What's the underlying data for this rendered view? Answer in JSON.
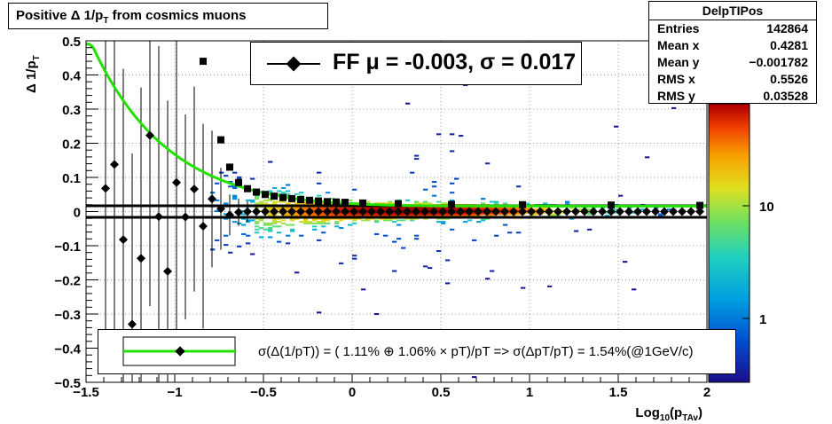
{
  "title": "Positive Δ 1/p_T from cosmics muons",
  "stats": {
    "name": "DelpTIPos",
    "rows": [
      {
        "label": "Entries",
        "value": "142864"
      },
      {
        "label": "Mean x",
        "value": "0.4281"
      },
      {
        "label": "Mean y",
        "value": "−0.001782"
      },
      {
        "label": "RMS x",
        "value": "0.5526"
      },
      {
        "label": "RMS y",
        "value": "0.03528"
      }
    ]
  },
  "fit_legend": "FF μ = -0.003, σ =   0.017",
  "resolution_legend": "σ(Δ(1/pT)) = ( 1.11% ⊕  1.06% × pT)/pT => σ(ΔpT/pT) =  1.54%(@1GeV/c)",
  "colors": {
    "fit_curve": "#22e000",
    "markers": "#000000",
    "frame": "#000000"
  },
  "chart_data": {
    "type": "heatmap",
    "xlabel": "Log10(pTAv)",
    "ylabel": "Δ 1/pT",
    "xlim": [
      -1.5,
      2
    ],
    "ylim": [
      -0.5,
      0.5
    ],
    "x_ticks": [
      "−1.5",
      "−1",
      "−0.5",
      "0",
      "0.5",
      "1",
      "1.5",
      "2"
    ],
    "y_ticks": [
      "0.5",
      "0.4",
      "0.3",
      "0.2",
      "0.1",
      "0",
      "−0.1",
      "−0.2",
      "−0.3",
      "−0.4",
      "−0.5"
    ],
    "grid": true,
    "z_scale": "log",
    "z_ticks": [
      "10",
      "1"
    ],
    "band_center_y": 0.0,
    "means": [
      {
        "x": -1.39,
        "y": 0.068,
        "err": 0.5
      },
      {
        "x": -1.34,
        "y": 0.138,
        "err": 0.5
      },
      {
        "x": -1.29,
        "y": -0.082,
        "err": 0.5
      },
      {
        "x": -1.24,
        "y": -0.33,
        "err": 0.5
      },
      {
        "x": -1.19,
        "y": -0.137,
        "err": 0.5
      },
      {
        "x": -1.14,
        "y": 0.223,
        "err": 0.5
      },
      {
        "x": -1.09,
        "y": -0.015,
        "err": 0.5
      },
      {
        "x": -1.04,
        "y": -0.175,
        "err": 0.5
      },
      {
        "x": -0.99,
        "y": 0.085,
        "err": 0.5
      },
      {
        "x": -0.94,
        "y": -0.016,
        "err": 0.3
      },
      {
        "x": -0.89,
        "y": 0.066,
        "err": 0.3
      },
      {
        "x": -0.84,
        "y": -0.043,
        "err": 0.3
      },
      {
        "x": -0.79,
        "y": 0.037,
        "err": 0.2
      },
      {
        "x": -0.74,
        "y": 0.008,
        "err": 0.12
      },
      {
        "x": -0.69,
        "y": -0.01,
        "err": 0.06
      },
      {
        "x": -0.64,
        "y": -0.002,
        "err": 0.04
      },
      {
        "x": -0.59,
        "y": 0.0,
        "err": 0.03
      },
      {
        "x": -0.54,
        "y": 0.0,
        "err": 0.02
      },
      {
        "x": -0.49,
        "y": 0.0,
        "err": 0.015
      },
      {
        "x": -0.44,
        "y": 0.0,
        "err": 0.012
      },
      {
        "x": -0.39,
        "y": 0.0,
        "err": 0.01
      },
      {
        "x": -0.34,
        "y": 0.0,
        "err": 0.01
      },
      {
        "x": -0.29,
        "y": 0.0,
        "err": 0.01
      },
      {
        "x": -0.24,
        "y": 0.0,
        "err": 0.01
      },
      {
        "x": -0.19,
        "y": 0.0,
        "err": 0.01
      },
      {
        "x": -0.14,
        "y": 0.0,
        "err": 0.01
      },
      {
        "x": -0.09,
        "y": 0.0,
        "err": 0.01
      },
      {
        "x": -0.04,
        "y": 0.0,
        "err": 0.01
      },
      {
        "x": 0.01,
        "y": 0.0,
        "err": 0.01
      },
      {
        "x": 0.06,
        "y": 0.0,
        "err": 0.01
      },
      {
        "x": 0.11,
        "y": 0.0,
        "err": 0.01
      },
      {
        "x": 0.16,
        "y": 0.0,
        "err": 0.01
      },
      {
        "x": 0.21,
        "y": 0.0,
        "err": 0.01
      },
      {
        "x": 0.26,
        "y": 0.0,
        "err": 0.01
      },
      {
        "x": 0.31,
        "y": 0.0,
        "err": 0.01
      },
      {
        "x": 0.36,
        "y": 0.0,
        "err": 0.01
      },
      {
        "x": 0.41,
        "y": 0.0,
        "err": 0.01
      },
      {
        "x": 0.46,
        "y": 0.0,
        "err": 0.01
      },
      {
        "x": 0.51,
        "y": 0.0,
        "err": 0.01
      },
      {
        "x": 0.56,
        "y": 0.0,
        "err": 0.01
      },
      {
        "x": 0.61,
        "y": 0.0,
        "err": 0.01
      },
      {
        "x": 0.66,
        "y": 0.0,
        "err": 0.01
      },
      {
        "x": 0.71,
        "y": 0.0,
        "err": 0.01
      },
      {
        "x": 0.76,
        "y": 0.0,
        "err": 0.01
      },
      {
        "x": 0.81,
        "y": 0.0,
        "err": 0.01
      },
      {
        "x": 0.86,
        "y": 0.0,
        "err": 0.01
      },
      {
        "x": 0.91,
        "y": 0.0,
        "err": 0.01
      },
      {
        "x": 0.96,
        "y": 0.0,
        "err": 0.01
      },
      {
        "x": 1.01,
        "y": 0.0,
        "err": 0.01
      },
      {
        "x": 1.06,
        "y": 0.0,
        "err": 0.01
      },
      {
        "x": 1.11,
        "y": 0.0,
        "err": 0.01
      },
      {
        "x": 1.16,
        "y": 0.0,
        "err": 0.01
      },
      {
        "x": 1.21,
        "y": 0.0,
        "err": 0.01
      },
      {
        "x": 1.26,
        "y": 0.0,
        "err": 0.01
      },
      {
        "x": 1.31,
        "y": 0.0,
        "err": 0.01
      },
      {
        "x": 1.36,
        "y": 0.0,
        "err": 0.01
      },
      {
        "x": 1.41,
        "y": 0.0,
        "err": 0.01
      },
      {
        "x": 1.46,
        "y": 0.0,
        "err": 0.01
      },
      {
        "x": 1.51,
        "y": 0.0,
        "err": 0.01
      },
      {
        "x": 1.56,
        "y": 0.0,
        "err": 0.01
      },
      {
        "x": 1.61,
        "y": 0.0,
        "err": 0.01
      },
      {
        "x": 1.66,
        "y": 0.0,
        "err": 0.01
      },
      {
        "x": 1.71,
        "y": 0.0,
        "err": 0.01
      },
      {
        "x": 1.76,
        "y": 0.0,
        "err": 0.01
      },
      {
        "x": 1.81,
        "y": 0.0,
        "err": 0.01
      },
      {
        "x": 1.86,
        "y": 0.0,
        "err": 0.01
      },
      {
        "x": 1.91,
        "y": 0.0,
        "err": 0.01
      },
      {
        "x": 1.96,
        "y": 0.0,
        "err": 0.01
      }
    ],
    "sigma_points": [
      {
        "x": -0.84,
        "y": 0.44
      },
      {
        "x": -0.74,
        "y": 0.21
      },
      {
        "x": -0.69,
        "y": 0.13
      },
      {
        "x": -0.64,
        "y": 0.085
      },
      {
        "x": -0.59,
        "y": 0.067
      },
      {
        "x": -0.54,
        "y": 0.057
      },
      {
        "x": -0.49,
        "y": 0.05
      },
      {
        "x": -0.44,
        "y": 0.045
      },
      {
        "x": -0.39,
        "y": 0.041
      },
      {
        "x": -0.34,
        "y": 0.038
      },
      {
        "x": -0.29,
        "y": 0.035
      },
      {
        "x": -0.24,
        "y": 0.033
      },
      {
        "x": -0.19,
        "y": 0.031
      },
      {
        "x": -0.14,
        "y": 0.029
      },
      {
        "x": -0.09,
        "y": 0.028
      },
      {
        "x": -0.04,
        "y": 0.027
      },
      {
        "x": 0.06,
        "y": 0.025
      },
      {
        "x": 0.26,
        "y": 0.023
      },
      {
        "x": 0.56,
        "y": 0.021
      },
      {
        "x": 0.96,
        "y": 0.02
      },
      {
        "x": 1.46,
        "y": 0.019
      },
      {
        "x": 1.96,
        "y": 0.018
      }
    ],
    "fit_params": {
      "a_percent": 1.11,
      "b_percent": 1.06
    },
    "fit_line_y": [
      0.017,
      -0.017
    ]
  }
}
